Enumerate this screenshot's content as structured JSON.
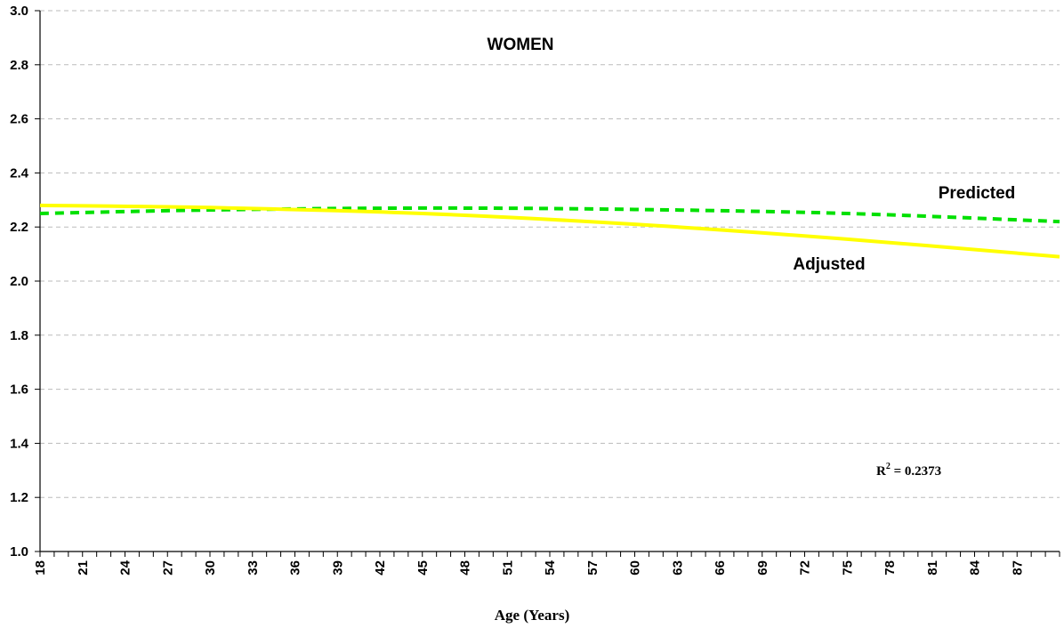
{
  "chart_data": {
    "type": "line",
    "title": "WOMEN",
    "xlabel": "Age (Years)",
    "ylabel": "",
    "xlim": [
      18,
      90
    ],
    "ylim": [
      1.0,
      3.0
    ],
    "x_ticks": [
      18,
      21,
      24,
      27,
      30,
      33,
      36,
      39,
      42,
      45,
      48,
      51,
      54,
      57,
      60,
      63,
      66,
      69,
      72,
      75,
      78,
      81,
      84,
      87
    ],
    "y_ticks": [
      "1.0",
      "1.2",
      "1.4",
      "1.6",
      "1.8",
      "2.0",
      "2.2",
      "2.4",
      "2.6",
      "2.8",
      "3.0"
    ],
    "grid": true,
    "annotation": {
      "base": "R",
      "sup": "2",
      "rest": " = 0.2373"
    },
    "series": [
      {
        "name": "Predicted",
        "color": "#00e000",
        "style": "dotted",
        "x": [
          18,
          30,
          45,
          60,
          75,
          90
        ],
        "y": [
          2.25,
          2.263,
          2.27,
          2.265,
          2.25,
          2.22
        ]
      },
      {
        "name": "Adjusted",
        "color": "#ffff00",
        "style": "solid",
        "x": [
          18,
          30,
          45,
          60,
          75,
          90
        ],
        "y": [
          2.28,
          2.272,
          2.25,
          2.21,
          2.155,
          2.09
        ]
      }
    ]
  }
}
